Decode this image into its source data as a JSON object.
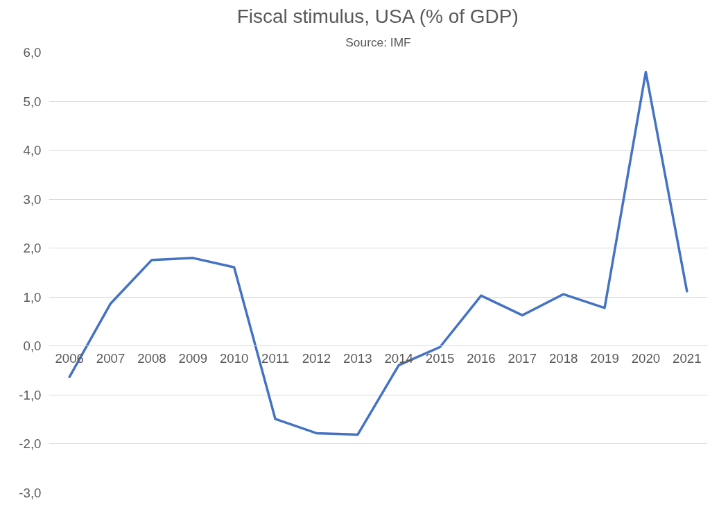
{
  "chart_data": {
    "type": "line",
    "title": "Fiscal stimulus, USA (% of GDP)",
    "subtitle": "Source: IMF",
    "categories": [
      "2006",
      "2007",
      "2008",
      "2009",
      "2010",
      "2011",
      "2012",
      "2013",
      "2014",
      "2015",
      "2016",
      "2017",
      "2018",
      "2019",
      "2020",
      "2021"
    ],
    "series": [
      {
        "color": "#4472c4",
        "values": [
          -0.63,
          0.87,
          1.76,
          1.8,
          1.61,
          -1.49,
          -1.78,
          -1.81,
          -0.39,
          -0.02,
          1.03,
          0.63,
          1.06,
          0.78,
          5.6,
          1.12
        ]
      }
    ],
    "ylim": [
      -3,
      6
    ],
    "yticks": [
      {
        "value": -3,
        "label": "-3,0"
      },
      {
        "value": -2,
        "label": "-2,0"
      },
      {
        "value": -1,
        "label": "-1,0"
      },
      {
        "value": 0,
        "label": "0,0"
      },
      {
        "value": 1,
        "label": "1,0"
      },
      {
        "value": 2,
        "label": "2,0"
      },
      {
        "value": 3,
        "label": "3,0"
      },
      {
        "value": 4,
        "label": "4,0"
      },
      {
        "value": 5,
        "label": "5,0"
      },
      {
        "value": 6,
        "label": "6,0"
      }
    ],
    "grid": "y",
    "marker": "none",
    "line_style": "solid"
  }
}
